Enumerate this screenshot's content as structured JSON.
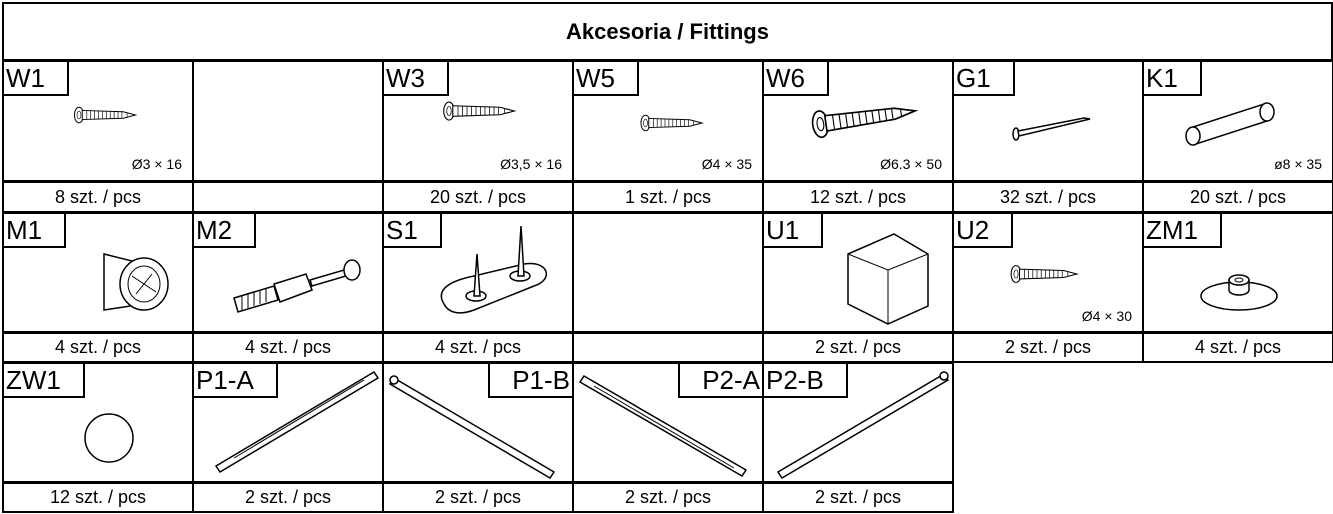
{
  "title": "Akcesoria / Fittings",
  "rows": [
    [
      {
        "code": "W1",
        "size": "Ø3 × 16",
        "qty": "8 szt. / pcs"
      },
      null,
      {
        "code": "W3",
        "size": "Ø3,5 × 16",
        "qty": "20 szt. / pcs"
      },
      {
        "code": "W5",
        "size": "Ø4 × 35",
        "qty": "1 szt. / pcs"
      },
      {
        "code": "W6",
        "size": "Ø6.3 × 50",
        "qty": "12 szt. / pcs"
      },
      {
        "code": "G1",
        "qty": "32 szt. / pcs"
      },
      {
        "code": "K1",
        "size": "ø8 × 35",
        "qty": "20 szt. / pcs"
      }
    ],
    [
      {
        "code": "M1",
        "qty": "4 szt. / pcs"
      },
      {
        "code": "M2",
        "qty": "4 szt. / pcs"
      },
      {
        "code": "S1",
        "qty": "4 szt. / pcs"
      },
      null,
      {
        "code": "U1",
        "qty": "2 szt. / pcs"
      },
      {
        "code": "U2",
        "size": "Ø4 × 30",
        "qty": "2 szt. / pcs"
      },
      {
        "code": "ZM1",
        "qty": "4 szt. / pcs"
      }
    ],
    [
      {
        "code": "ZW1",
        "qty": "12 szt. / pcs"
      },
      {
        "code": "P1-A",
        "qty": "2 szt. / pcs"
      },
      {
        "code": "P1-B",
        "qty": "2 szt. / pcs"
      },
      {
        "code": "P2-A",
        "qty": "2 szt. / pcs"
      },
      {
        "code": "P2-B",
        "qty": "2 szt. / pcs"
      }
    ]
  ]
}
